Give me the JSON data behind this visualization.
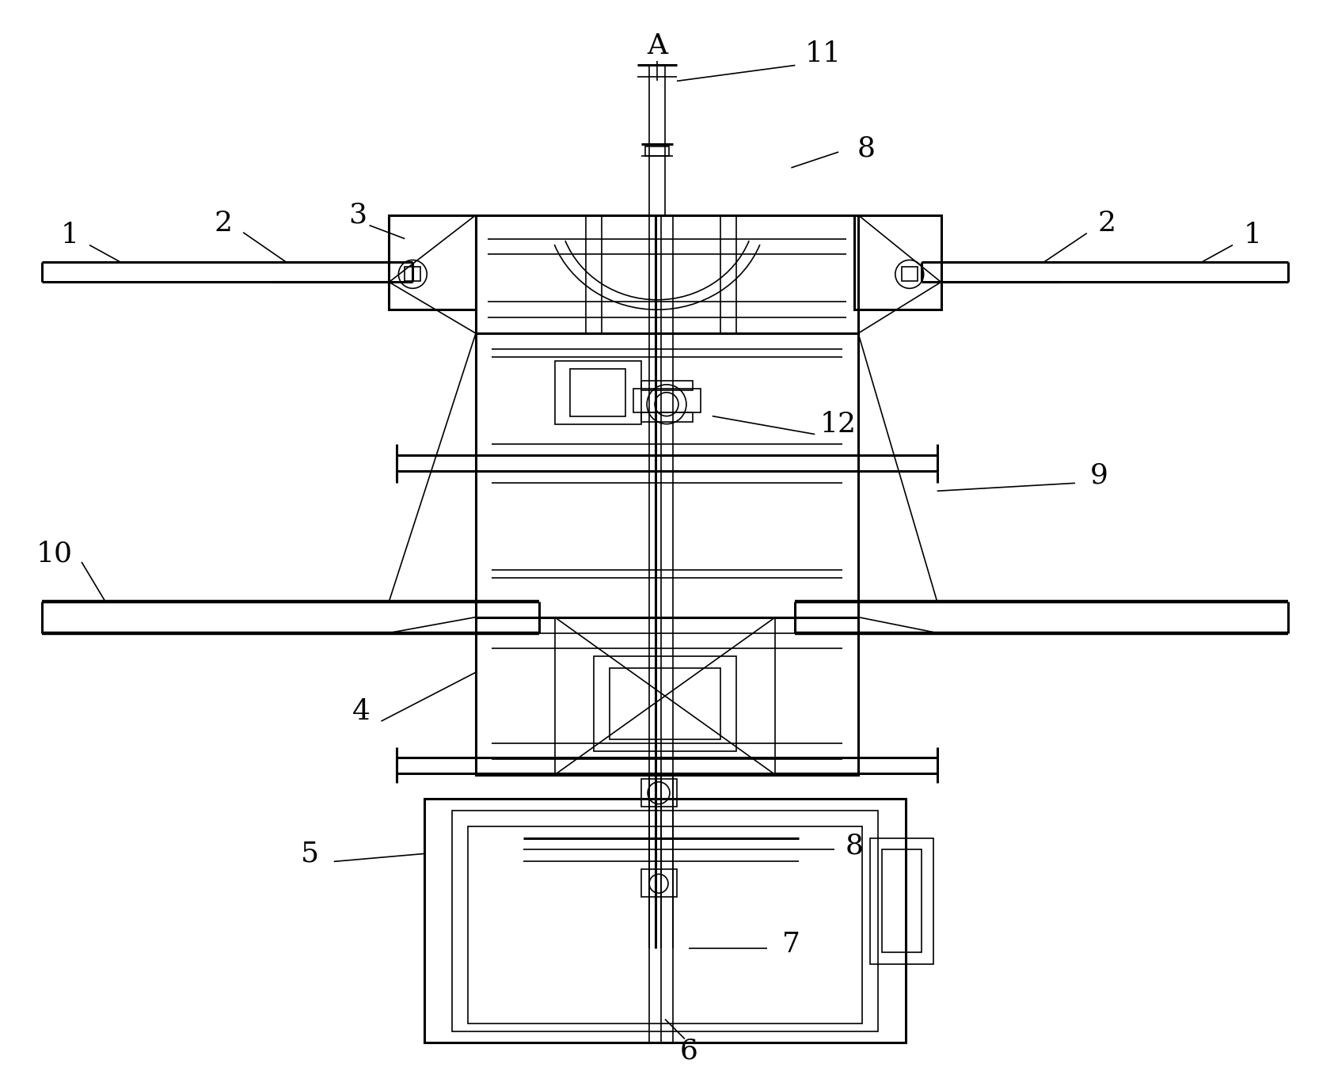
{
  "bg_color": "#ffffff",
  "lc": "#000000",
  "lw": 1.2,
  "tlw": 2.2,
  "fs": 22,
  "figsize": [
    16.85,
    13.77
  ],
  "dpi": 100
}
